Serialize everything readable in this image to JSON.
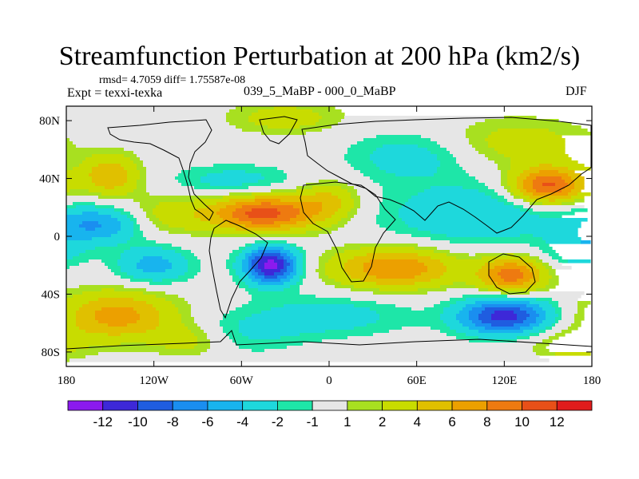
{
  "header": {
    "title": "Streamfunction Perturbation at 200 hPa (km2/s)",
    "stats": "rmsd= 4.7059 diff= 1.75587e-08",
    "experiment": "Expt = texxi-texka",
    "comparison": "039_5_MaBP - 000_0_MaBP",
    "season": "DJF"
  },
  "chart_data": {
    "type": "heatmap",
    "title": "Streamfunction Perturbation at 200 hPa (km2/s)",
    "xlabel": "",
    "ylabel": "",
    "xlim": [
      -180,
      180
    ],
    "ylim": [
      -90,
      90
    ],
    "x_ticks": [
      {
        "value": -180,
        "label": "180"
      },
      {
        "value": -120,
        "label": "120W"
      },
      {
        "value": -60,
        "label": "60W"
      },
      {
        "value": 0,
        "label": "0"
      },
      {
        "value": 60,
        "label": "60E"
      },
      {
        "value": 120,
        "label": "120E"
      },
      {
        "value": 180,
        "label": "180"
      }
    ],
    "y_ticks": [
      {
        "value": 80,
        "label": "80N"
      },
      {
        "value": 40,
        "label": "40N"
      },
      {
        "value": 0,
        "label": "0"
      },
      {
        "value": -40,
        "label": "40S"
      },
      {
        "value": -80,
        "label": "80S"
      }
    ],
    "colorbar": {
      "colors": [
        "#8b1aee",
        "#3d28d8",
        "#1f5de0",
        "#1a8ef0",
        "#18b4ee",
        "#1ed8dc",
        "#1ee6a8",
        "#e6e6e6",
        "#a8e020",
        "#c8dc00",
        "#e0c000",
        "#eca000",
        "#ee7a10",
        "#e85018",
        "#e01c1c"
      ],
      "labels": [
        "-12",
        "-10",
        "-8",
        "-6",
        "-4",
        "-2",
        "-1",
        "1",
        "2",
        "4",
        "6",
        "8",
        "10",
        "12"
      ],
      "levels": [
        -12,
        -10,
        -8,
        -6,
        -4,
        -2,
        -1,
        1,
        2,
        4,
        6,
        8,
        10,
        12
      ]
    },
    "field_features": [
      {
        "lon": -40,
        "lat": -20,
        "amp": -13,
        "slon": 13,
        "slat": 9
      },
      {
        "lon": -45,
        "lat": 16,
        "amp": 11,
        "slon": 26,
        "slat": 9
      },
      {
        "lon": 120,
        "lat": -55,
        "amp": -11,
        "slon": 22,
        "slat": 9
      },
      {
        "lon": 150,
        "lat": 35,
        "amp": 11,
        "slon": 18,
        "slat": 9
      },
      {
        "lon": 45,
        "lat": -22,
        "amp": 8,
        "slon": 30,
        "slat": 10
      },
      {
        "lon": 125,
        "lat": -27,
        "amp": 9,
        "slon": 16,
        "slat": 9
      },
      {
        "lon": -150,
        "lat": 42,
        "amp": 6,
        "slon": 14,
        "slat": 10
      },
      {
        "lon": -145,
        "lat": -55,
        "amp": 7,
        "slon": 28,
        "slat": 12
      },
      {
        "lon": -160,
        "lat": 8,
        "amp": -6,
        "slon": 22,
        "slat": 9
      },
      {
        "lon": -120,
        "lat": -20,
        "amp": -5,
        "slon": 18,
        "slat": 9
      },
      {
        "lon": -65,
        "lat": 38,
        "amp": -3,
        "slon": 30,
        "slat": 8
      },
      {
        "lon": 100,
        "lat": 15,
        "amp": -4,
        "slon": 45,
        "slat": 15
      },
      {
        "lon": 0,
        "lat": 25,
        "amp": 4,
        "slon": 15,
        "slat": 10
      },
      {
        "lon": 55,
        "lat": 55,
        "amp": -3,
        "slon": 30,
        "slat": 12
      },
      {
        "lon": -30,
        "lat": 82,
        "amp": 3,
        "slon": 28,
        "slat": 8
      },
      {
        "lon": 0,
        "lat": -55,
        "amp": -3,
        "slon": 40,
        "slat": 10
      },
      {
        "lon": -60,
        "lat": -68,
        "amp": -2,
        "slon": 30,
        "slat": 10
      },
      {
        "lon": 170,
        "lat": -10,
        "amp": -3,
        "slon": 16,
        "slat": 9
      },
      {
        "lon": -95,
        "lat": -72,
        "amp": 3,
        "slon": 18,
        "slat": 8
      },
      {
        "lon": 130,
        "lat": 65,
        "amp": 3,
        "slon": 35,
        "slat": 12
      },
      {
        "lon": -110,
        "lat": 15,
        "amp": 3,
        "slon": 20,
        "slat": 10
      },
      {
        "lon": 165,
        "lat": -75,
        "amp": 3,
        "slon": 20,
        "slat": 8
      }
    ]
  }
}
